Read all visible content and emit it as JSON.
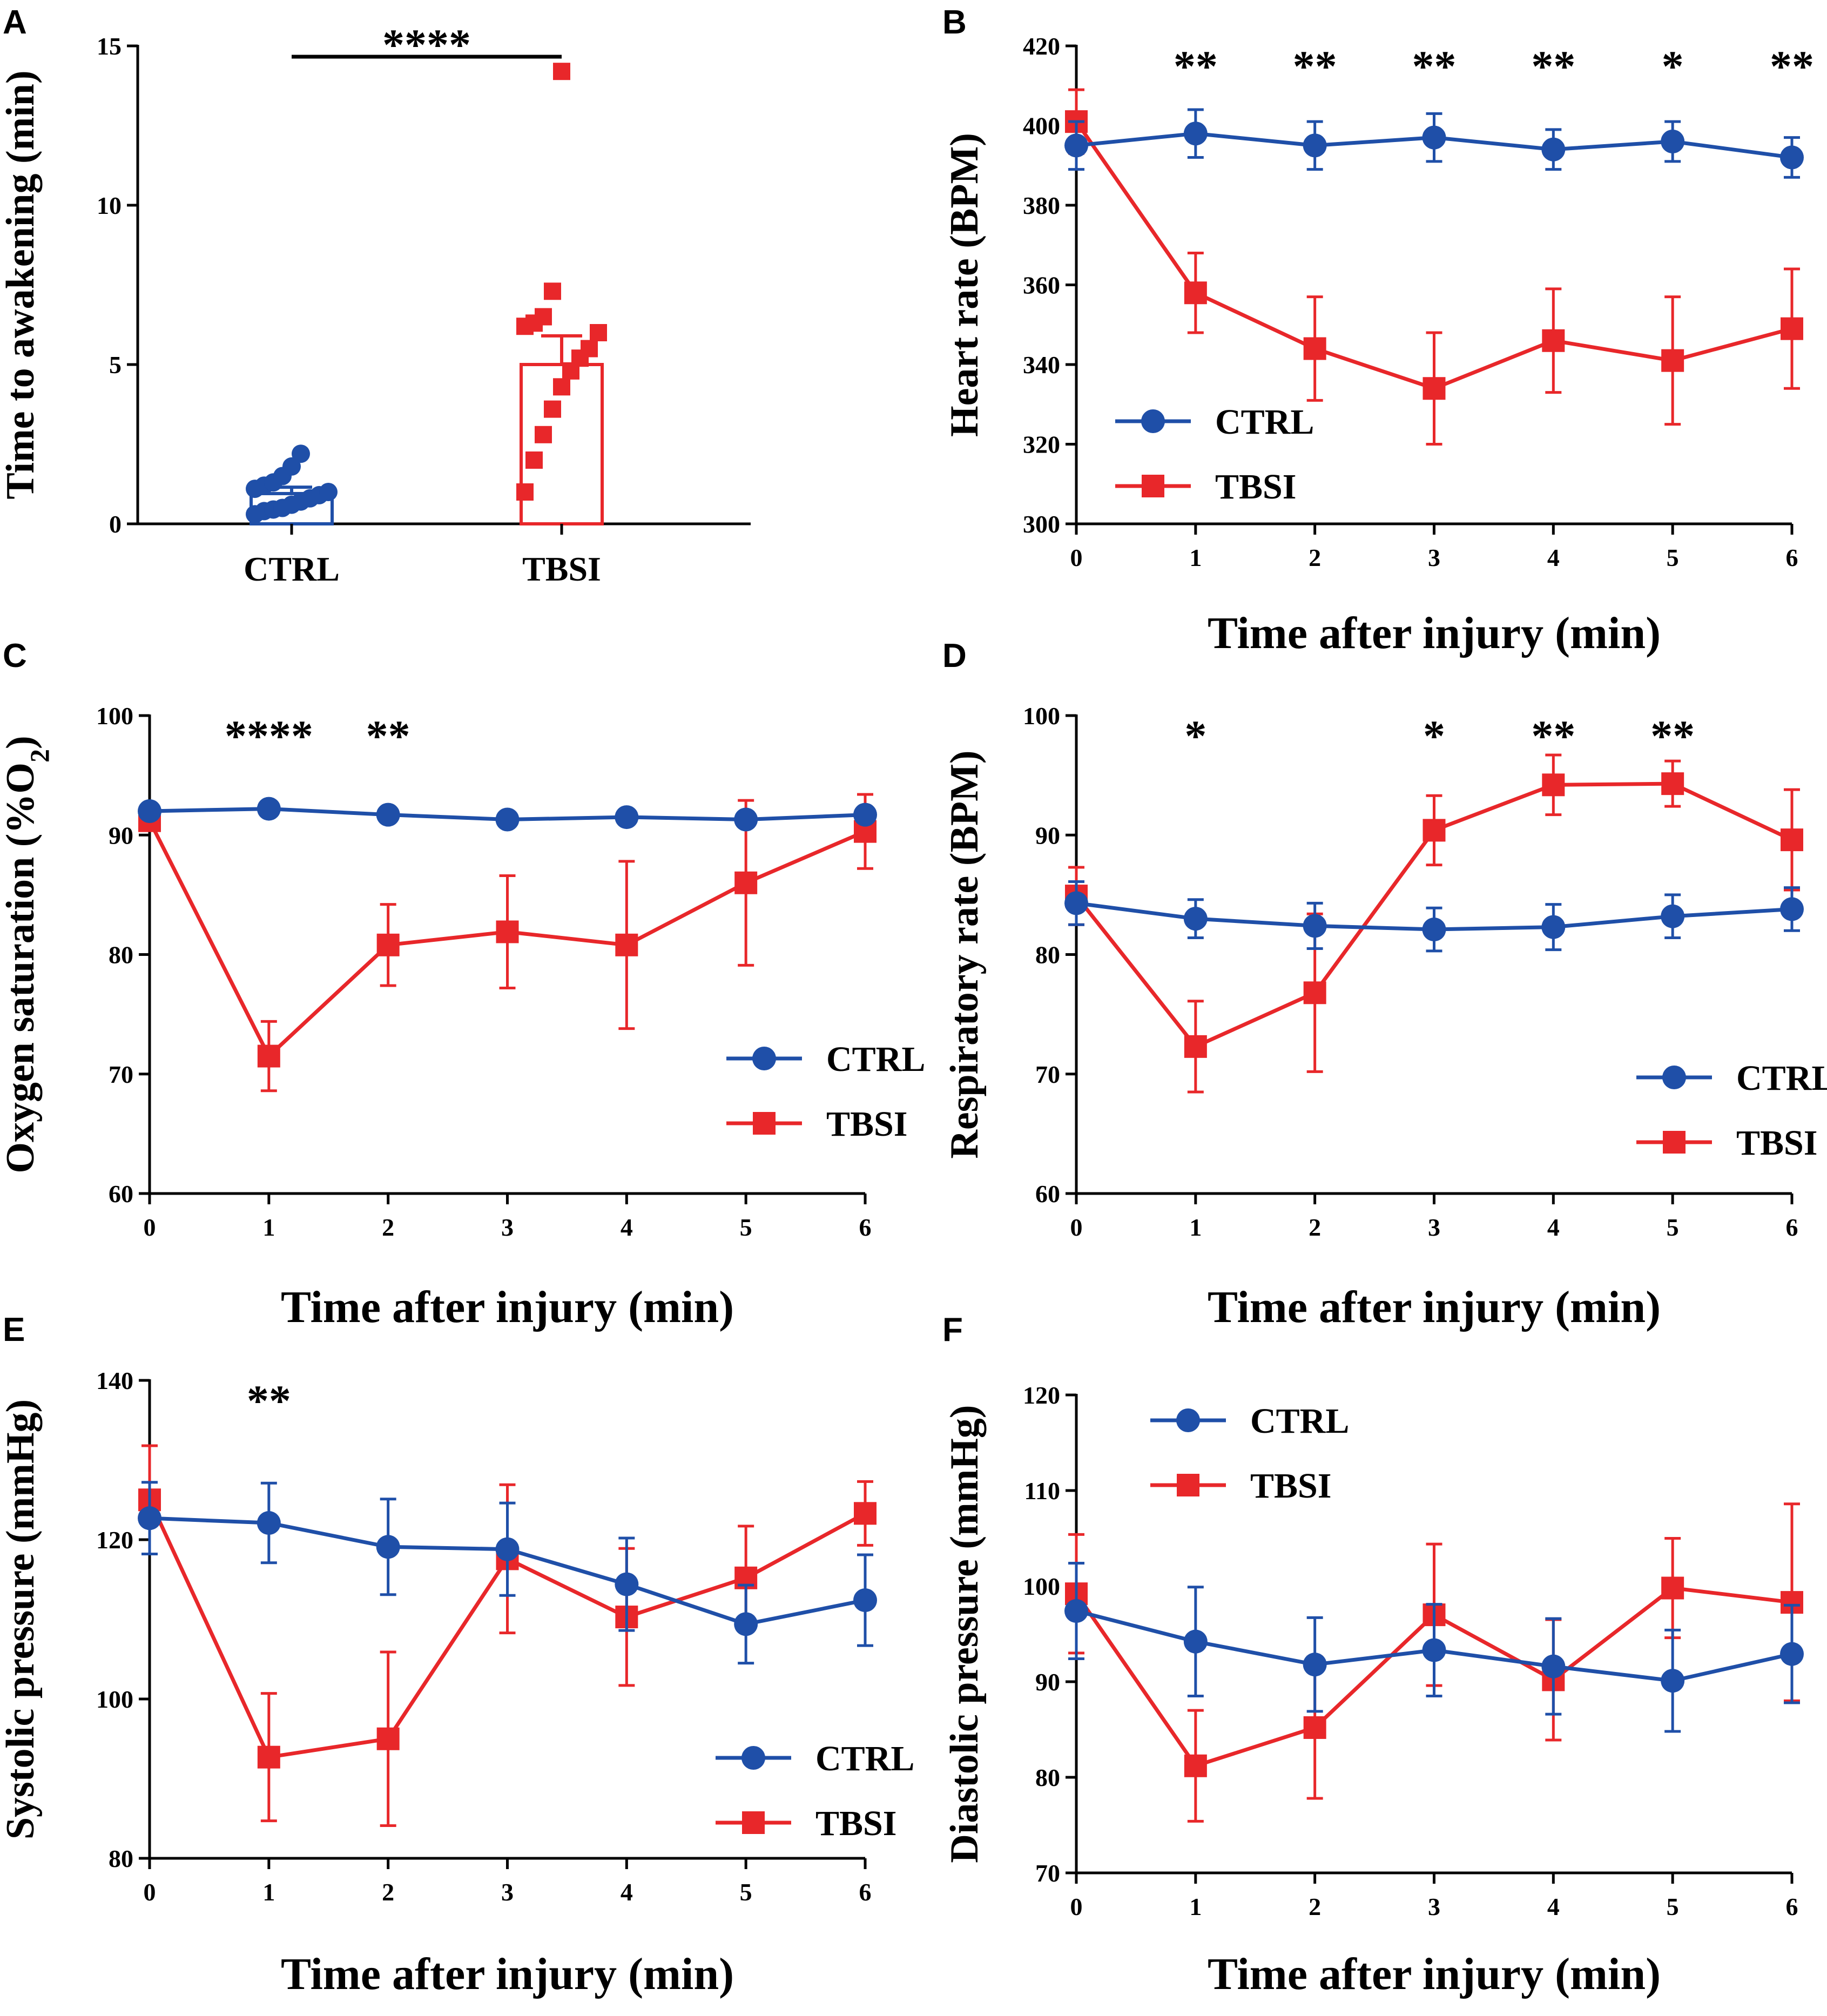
{
  "colors": {
    "ctrl": "#1f4fa8",
    "tbsi": "#e8272a",
    "axis": "#000000"
  },
  "chart_data": [
    {
      "id": "A",
      "type": "bar",
      "panel_label": "A",
      "title": "",
      "xlabel": "",
      "ylabel": "Time to awakening (min)",
      "ylim": [
        0,
        15
      ],
      "yticks": [
        "0",
        "5",
        "10",
        "15"
      ],
      "categories": [
        "CTRL",
        "TBSI"
      ],
      "means": [
        0.95,
        5.0
      ],
      "sem": [
        0.2,
        0.9
      ],
      "points": [
        [
          0.3,
          0.4,
          0.45,
          0.5,
          0.6,
          0.7,
          0.8,
          0.9,
          1.0,
          1.1,
          1.2,
          1.3,
          1.5,
          1.8,
          2.2
        ],
        [
          1.0,
          2.0,
          2.8,
          3.6,
          4.3,
          4.8,
          5.2,
          5.5,
          6.0,
          6.2,
          6.3,
          6.5,
          7.3,
          14.2
        ]
      ],
      "significance": "****"
    },
    {
      "id": "B",
      "type": "line",
      "panel_label": "B",
      "xlabel": "Time after injury (min)",
      "ylabel": "Heart rate (BPM)",
      "x": [
        0,
        1,
        2,
        3,
        4,
        5,
        6
      ],
      "xticks": [
        "0",
        "1",
        "2",
        "3",
        "4",
        "5",
        "6"
      ],
      "ylim": [
        300,
        420
      ],
      "yticks": [
        "300",
        "320",
        "340",
        "360",
        "380",
        "400",
        "420"
      ],
      "series": [
        {
          "name": "CTRL",
          "values": [
            395,
            398,
            395,
            397,
            394,
            396,
            392
          ],
          "errors": [
            6,
            6,
            6,
            6,
            5,
            5,
            5
          ]
        },
        {
          "name": "TBSI",
          "values": [
            401,
            358,
            344,
            334,
            346,
            341,
            349
          ],
          "errors": [
            8,
            10,
            13,
            14,
            13,
            16,
            15
          ]
        }
      ],
      "significance": [
        "",
        "**",
        "**",
        "**",
        "**",
        "*",
        "**"
      ],
      "legend": "bottom-left"
    },
    {
      "id": "C",
      "type": "line",
      "panel_label": "C",
      "xlabel": "Time after injury (min)",
      "ylabel": "Oxygen saturation (%O",
      "ylabel_sub": "2",
      "ylabel_end": ")",
      "x": [
        0,
        1,
        2,
        3,
        4,
        5,
        6
      ],
      "xticks": [
        "0",
        "1",
        "2",
        "3",
        "4",
        "5",
        "6"
      ],
      "ylim": [
        60,
        100
      ],
      "yticks": [
        "60",
        "70",
        "80",
        "90",
        "100"
      ],
      "series": [
        {
          "name": "CTRL",
          "values": [
            92,
            92.2,
            91.7,
            91.3,
            91.5,
            91.3,
            91.7
          ],
          "errors": [
            0.4,
            0.4,
            0.4,
            0.4,
            0.4,
            0.4,
            0.4
          ]
        },
        {
          "name": "TBSI",
          "values": [
            91.2,
            71.5,
            80.8,
            81.9,
            80.8,
            86,
            90.3
          ],
          "errors": [
            0.5,
            2.9,
            3.4,
            4.7,
            7,
            6.9,
            3.1
          ]
        }
      ],
      "significance": [
        "",
        "****",
        "**",
        "",
        "",
        "",
        ""
      ],
      "legend": "bottom-right"
    },
    {
      "id": "D",
      "type": "line",
      "panel_label": "D",
      "xlabel": "Time after injury (min)",
      "ylabel": "Respiratory rate (BPM)",
      "x": [
        0,
        1,
        2,
        3,
        4,
        5,
        6
      ],
      "xticks": [
        "0",
        "1",
        "2",
        "3",
        "4",
        "5",
        "6"
      ],
      "ylim": [
        60,
        100
      ],
      "yticks": [
        "60",
        "70",
        "80",
        "90",
        "100"
      ],
      "series": [
        {
          "name": "CTRL",
          "values": [
            84.3,
            83,
            82.4,
            82.1,
            82.3,
            83.2,
            83.8
          ],
          "errors": [
            1.8,
            1.6,
            1.9,
            1.8,
            1.9,
            1.8,
            1.8
          ]
        },
        {
          "name": "TBSI",
          "values": [
            84.9,
            72.3,
            76.8,
            90.4,
            94.2,
            94.3,
            89.6
          ],
          "errors": [
            2.4,
            3.8,
            6.6,
            2.9,
            2.5,
            1.9,
            4.2
          ]
        }
      ],
      "significance": [
        "",
        "*",
        "",
        "*",
        "**",
        "**",
        ""
      ],
      "legend": "bottom-right"
    },
    {
      "id": "E",
      "type": "line",
      "panel_label": "E",
      "xlabel": "Time after injury (min)",
      "ylabel": "Systolic pressure (mmHg)",
      "x": [
        0,
        1,
        2,
        3,
        4,
        5,
        6
      ],
      "xticks": [
        "0",
        "1",
        "2",
        "3",
        "4",
        "5",
        "6"
      ],
      "ylim": [
        80,
        140
      ],
      "yticks": [
        "80",
        "100",
        "120",
        "140"
      ],
      "series": [
        {
          "name": "CTRL",
          "values": [
            122.7,
            122.1,
            119.1,
            118.8,
            114.4,
            109.4,
            112.4
          ],
          "errors": [
            4.5,
            5,
            6,
            5.8,
            5.8,
            4.9,
            5.7
          ]
        },
        {
          "name": "TBSI",
          "values": [
            125,
            92.7,
            95,
            117.6,
            110.3,
            115.2,
            123.3
          ],
          "errors": [
            6.8,
            8,
            10.9,
            9.3,
            8.6,
            6.5,
            4
          ]
        }
      ],
      "significance": [
        "",
        "**",
        "",
        "",
        "",
        "",
        ""
      ],
      "legend": "bottom-right"
    },
    {
      "id": "F",
      "type": "line",
      "panel_label": "F",
      "xlabel": "Time after injury (min)",
      "ylabel": "Diastolic pressure (mmHg)",
      "x": [
        0,
        1,
        2,
        3,
        4,
        5,
        6
      ],
      "xticks": [
        "0",
        "1",
        "2",
        "3",
        "4",
        "5",
        "6"
      ],
      "ylim": [
        70,
        120
      ],
      "yticks": [
        "70",
        "80",
        "90",
        "100",
        "110",
        "120"
      ],
      "series": [
        {
          "name": "CTRL",
          "values": [
            97.4,
            94.2,
            91.8,
            93.3,
            91.6,
            90.1,
            92.9
          ],
          "errors": [
            5,
            5.7,
            4.9,
            4.8,
            5,
            5.3,
            5.1
          ]
        },
        {
          "name": "TBSI",
          "values": [
            99.2,
            81.2,
            85.2,
            97,
            90.2,
            99.8,
            98.3
          ],
          "errors": [
            6.2,
            5.8,
            7.4,
            7.4,
            6.3,
            5.2,
            10.3
          ]
        }
      ],
      "significance": [
        "",
        "",
        "",
        "",
        "",
        "",
        ""
      ],
      "legend": "top-left"
    }
  ]
}
